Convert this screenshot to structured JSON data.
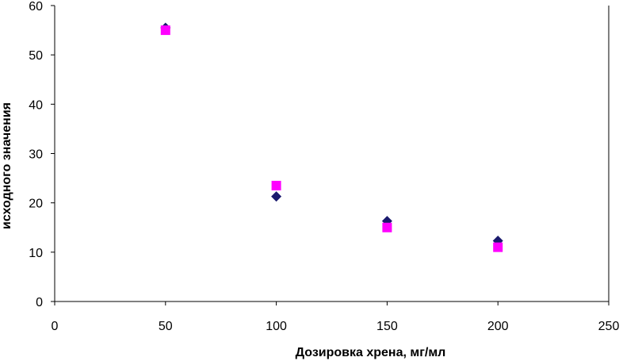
{
  "chart_data": {
    "type": "scatter",
    "title": "",
    "xlabel": "Дозировка хрена, мг/мл",
    "ylabel": "исходного значения",
    "xlim": [
      0,
      250
    ],
    "ylim": [
      0,
      60
    ],
    "x_ticks": [
      0,
      50,
      100,
      150,
      200,
      250
    ],
    "y_ticks": [
      0,
      10,
      20,
      30,
      40,
      50,
      60
    ],
    "grid": false,
    "legend": "none",
    "series": [
      {
        "marker": "diamond",
        "color": "#1a1a6e",
        "x": [
          50,
          100,
          150,
          200
        ],
        "y": [
          55.5,
          21.3,
          16.3,
          12.3
        ]
      },
      {
        "marker": "square",
        "color": "#ff00ff",
        "x": [
          50,
          100,
          150,
          200
        ],
        "y": [
          55,
          23.5,
          15,
          11
        ]
      }
    ]
  }
}
